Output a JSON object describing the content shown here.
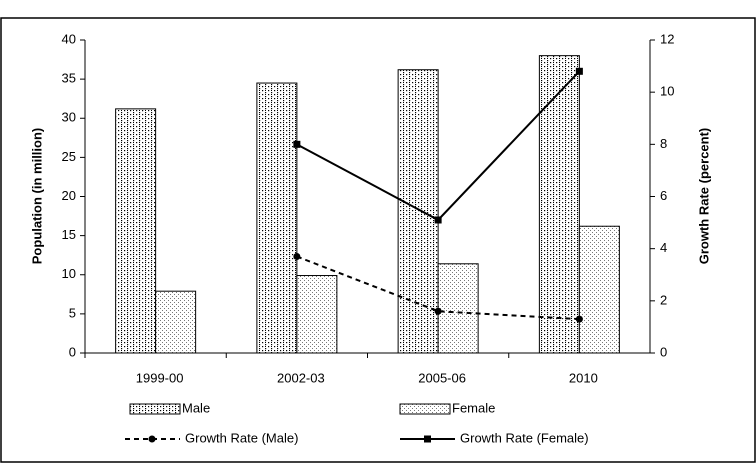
{
  "chart_data": {
    "type": "bar",
    "categories": [
      "1999-00",
      "2002-03",
      "2005-06",
      "2010"
    ],
    "y_label": "Population (in million)",
    "y2_label": "Growth Rate (percent)",
    "ylim": [
      0,
      40
    ],
    "yticks": [
      0,
      5,
      10,
      15,
      20,
      25,
      30,
      35,
      40
    ],
    "y2lim": [
      0,
      12
    ],
    "y2ticks": [
      0,
      2,
      4,
      6,
      8,
      10,
      12
    ],
    "series": [
      {
        "name": "Male",
        "type": "bar",
        "pattern": "vertical-dots",
        "color": "#000000",
        "values": [
          31.2,
          34.5,
          36.2,
          38.0
        ]
      },
      {
        "name": "Female",
        "type": "bar",
        "pattern": "fine-dots",
        "color": "#000000",
        "values": [
          7.9,
          9.9,
          11.4,
          16.2
        ]
      },
      {
        "name": "Growth Rate (Male)",
        "type": "line",
        "axis": "y2",
        "dashed": true,
        "marker": "circle",
        "color": "#000000",
        "values": [
          null,
          3.7,
          1.6,
          1.3
        ]
      },
      {
        "name": "Growth Rate (Female)",
        "type": "line",
        "axis": "y2",
        "dashed": false,
        "marker": "square",
        "color": "#000000",
        "values": [
          null,
          8.0,
          5.1,
          10.8
        ]
      }
    ]
  }
}
